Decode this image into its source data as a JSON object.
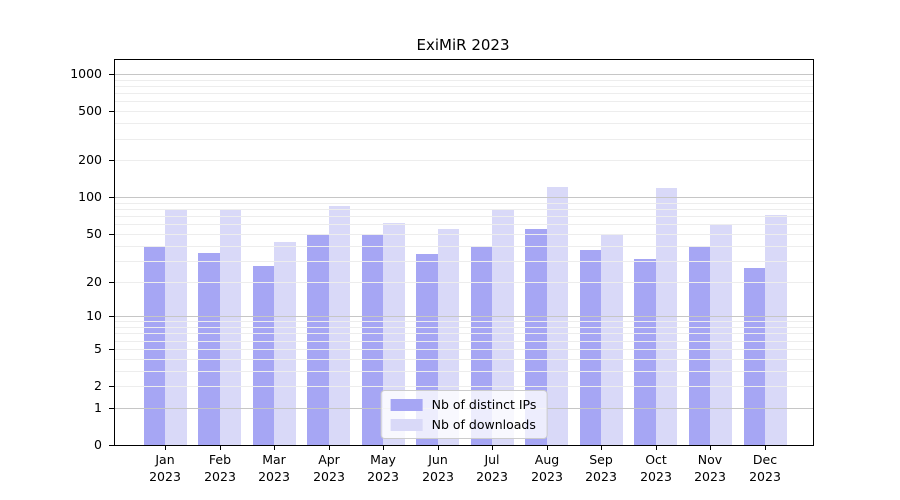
{
  "figure": {
    "title": "ExiMiR 2023"
  },
  "chart_data": {
    "type": "bar",
    "title": "ExiMiR 2023",
    "categories": [
      "Jan 2023",
      "Feb 2023",
      "Mar 2023",
      "Apr 2023",
      "May 2023",
      "Jun 2023",
      "Jul 2023",
      "Aug 2023",
      "Sep 2023",
      "Oct 2023",
      "Nov 2023",
      "Dec 2023"
    ],
    "series": [
      {
        "name": "Nb of distinct IPs",
        "color": "#a6a6f4",
        "values": [
          39,
          35,
          27,
          49,
          50,
          34,
          40,
          55,
          37,
          31,
          39,
          26
        ]
      },
      {
        "name": "Nb of downloads",
        "color": "#d9d9f8",
        "values": [
          80,
          79,
          43,
          84,
          61,
          55,
          78,
          120,
          50,
          118,
          59,
          72
        ]
      }
    ],
    "xlabel": "",
    "ylabel": "",
    "yscale": "log1p",
    "yticks": [
      1000,
      500,
      200,
      100,
      50,
      20,
      10,
      5,
      2,
      1,
      0
    ],
    "ylim": [
      0,
      1300
    ],
    "grid": "horizontal, major and minor, drawn over bars",
    "legend_position": "lower center",
    "colors": {
      "axis": "#000000",
      "major_grid": "#c6c6c6",
      "minor_grid": "#ededed",
      "background": "#ffffff"
    }
  }
}
